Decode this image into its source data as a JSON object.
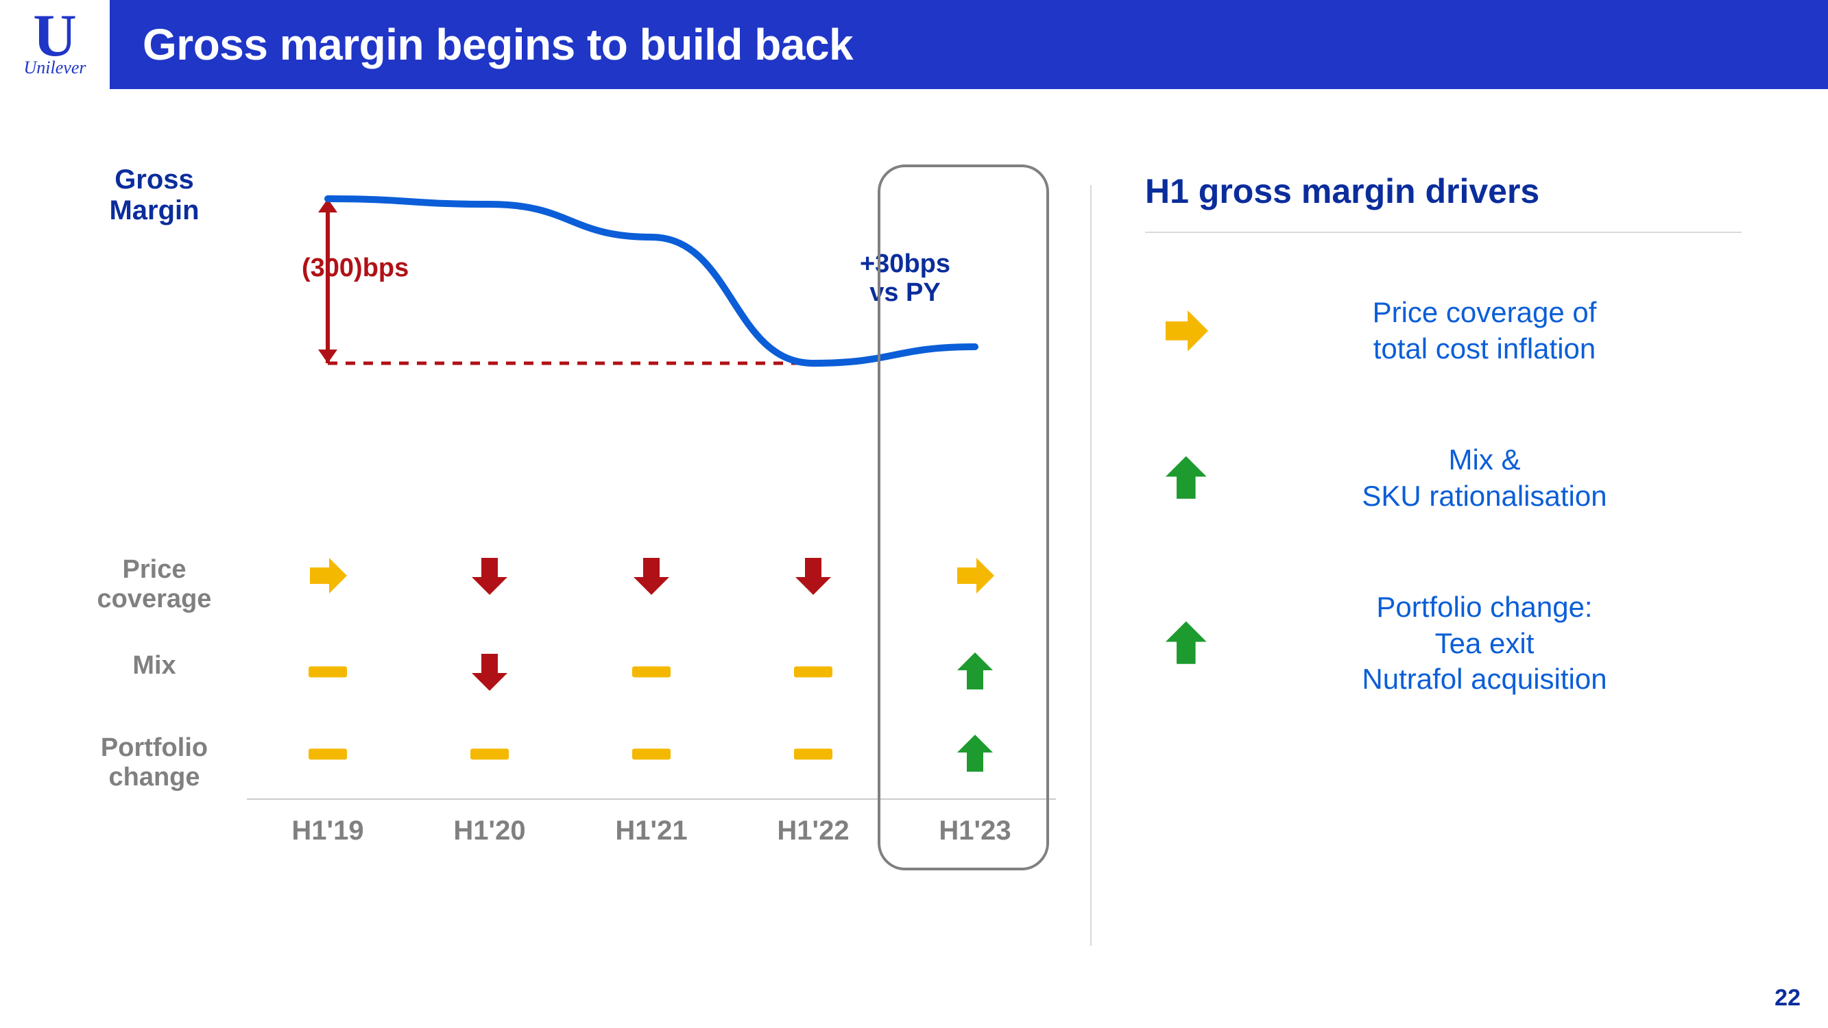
{
  "brand": {
    "logo_letter": "U",
    "logo_word": "Unilever",
    "color": "#1f36c7"
  },
  "header": {
    "title": "Gross margin begins to build back",
    "bg_color": "#1f36c7",
    "text_color": "#ffffff"
  },
  "colors": {
    "blue": "#0b5ed7",
    "dark_blue": "#0b2d9c",
    "red": "#b01116",
    "amber": "#f5b800",
    "green": "#1d9b2f",
    "gray": "#808080",
    "light_gray": "#d9d9d9"
  },
  "margin_chart": {
    "type": "line",
    "label": "Gross\nMargin",
    "label_color": "#0b2d9c",
    "line_color": "#0b5ed7",
    "line_width": 10,
    "periods": [
      "H1'19",
      "H1'20",
      "H1'21",
      "H1'22",
      "H1'23"
    ],
    "y_index": [
      100,
      99,
      93,
      70,
      73
    ],
    "ylim": [
      60,
      105
    ],
    "dashed_baseline_y": 70,
    "dashed_color": "#b01116",
    "delta_arrow": {
      "label": "(300)bps",
      "color": "#b01116",
      "x_period": "H1'19",
      "from_y": 100,
      "to_y": 70
    },
    "spot_label": {
      "text_line1": "+30bps",
      "text_line2": "vs PY",
      "color": "#0b2d9c",
      "x_period": "H1'23"
    },
    "highlight_period": "H1'23"
  },
  "drivers_grid": {
    "rows": [
      {
        "key": "price_coverage",
        "label": "Price\ncoverage",
        "cells": [
          "right-amber",
          "down-red",
          "down-red",
          "down-red",
          "right-amber"
        ]
      },
      {
        "key": "mix",
        "label": "Mix",
        "cells": [
          "flat-amber",
          "down-red",
          "flat-amber",
          "flat-amber",
          "up-green"
        ]
      },
      {
        "key": "portfolio_change",
        "label": "Portfolio\nchange",
        "cells": [
          "flat-amber",
          "flat-amber",
          "flat-amber",
          "flat-amber",
          "up-green"
        ]
      }
    ],
    "xaxis": [
      "H1'19",
      "H1'20",
      "H1'21",
      "H1'22",
      "H1'23"
    ]
  },
  "right_panel": {
    "title": "H1 gross margin drivers",
    "title_color": "#0b2d9c",
    "items": [
      {
        "icon": "right-amber",
        "text": "Price coverage of\ntotal cost inflation"
      },
      {
        "icon": "up-green",
        "text": "Mix &\nSKU rationalisation"
      },
      {
        "icon": "up-green",
        "text": "Portfolio change:\nTea exit\nNutrafol acquisition"
      }
    ],
    "text_color": "#0b5ed7"
  },
  "page_number": "22"
}
